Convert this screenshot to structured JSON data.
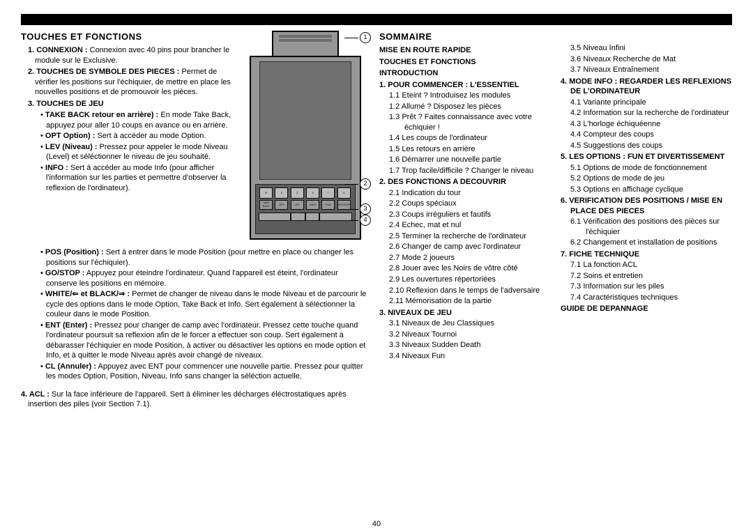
{
  "page_number": "40",
  "left": {
    "heading": "TOUCHES ET FONCTIONS",
    "items": [
      {
        "num": "1.",
        "label": "CONNEXION :",
        "text": " Connexion avec 40 pins pour brancher le module sur le Exclusive."
      },
      {
        "num": "2.",
        "label": "TOUCHES DE SYMBOLE DES PIECES :",
        "text": " Permet de vérifier les positions sur l'échiquier, de mettre en place les nouvelles positions et de promouvoir les pièces."
      },
      {
        "num": "3.",
        "label": "TOUCHES DE JEU",
        "sub": [
          {
            "label": "TAKE BACK retour en arrière) :",
            "text": " En mode Take Back, appuyez pour aller 10 coups en avance ou en arrière."
          },
          {
            "label": "OPT Option) :",
            "text": " Sert à accéder au mode Option."
          },
          {
            "label": "LEV (Niveau) :",
            "text": " Pressez pour appeler le mode Niveau (Level) et séléctionner le niveau de jeu souhaité."
          },
          {
            "label": "INFO :",
            "text": " Sert à accéder au mode Info (pour afficher l'information sur les parties et permettre d'observer la reflexion de l'ordinateur)."
          },
          {
            "label": "POS (Position) :",
            "text": " Sert à entrer dans le mode Position (pour mettre en place ou changer les positions sur l'échiquier)."
          },
          {
            "label": "GO/STOP :",
            "text": " Appuyez pour éteindre l'ordinateur. Quand l'appareil est éteint, l'ordinateur conserve les positions en mémoire."
          },
          {
            "label": "WHITE/⇐ et BLACK/⇒ :",
            "text": " Permet de changer de niveau dans le mode Niveau et de parcourir le cycle des options dans le mode Option, Take Back et Info. Sert également à séléctionner la couleur dans le mode Position."
          },
          {
            "label": "ENT (Enter) :",
            "text": " Pressez pour changer de camp avec l'ordinateur. Pressez cette touche quand l'ordinateur poursuit sa reflexion afin de le forcer a effectuer son coup. Sert également à débarasser l'échiquier en mode Position, à activer ou désactiver les options en mode option et Info, et à quitter le mode Niveau après avoir changé de niveaux."
          },
          {
            "label": "CL (Annuler) :",
            "text": " Appuyez avec ENT pour commencer une nouvelle partie. Pressez pour quitter les modes Option, Position, Niveau, Info sans changer la séléction actuelle."
          }
        ]
      },
      {
        "num": "4.",
        "label": "ACL :",
        "text": " Sur la face inférieure de l'appareil. Sert à éliminer les décharges éléctrostatiques après insertion des piles (voir Section 7.1)."
      }
    ]
  },
  "device": {
    "callouts": [
      "1",
      "2",
      "3",
      "4"
    ],
    "row1": [
      "♔",
      "♕",
      "♖",
      "♗",
      "♘",
      "♙"
    ],
    "row2": [
      "TAKE BACK",
      "OPT",
      "LEV",
      "INFO",
      "POS",
      "GO/ STOP"
    ]
  },
  "sommaire": {
    "heading": "SOMMAIRE",
    "col1": [
      {
        "head": "MISE EN ROUTE RAPIDE"
      },
      {
        "head": "TOUCHES ET FONCTIONS"
      },
      {
        "head": "INTRODUCTION"
      },
      {
        "head": "1. POUR COMMENCER : L'ESSENTIEL"
      },
      {
        "n": "1.1",
        "t": "Eteint ? Introduisez les modules"
      },
      {
        "n": "1.2",
        "t": "Allumé ? Disposez les pièces"
      },
      {
        "n": "1.3",
        "t": "Prêt ? Faites connaissance avec votre échiquier !"
      },
      {
        "n": "1.4",
        "t": "Les coups de l'ordinateur"
      },
      {
        "n": "1.5",
        "t": "Les retours en arrière"
      },
      {
        "n": "1.6",
        "t": "Démarrer une nouvelle partie"
      },
      {
        "n": "1.7",
        "t": "Trop facile/difficile ? Changer le niveau"
      },
      {
        "head": "2. DES FONCTIONS A DECOUVRIR"
      },
      {
        "n": "2.1",
        "t": "Indication du tour"
      },
      {
        "n": "2.2",
        "t": "Coups spéciaux"
      },
      {
        "n": "2.3",
        "t": "Coups irréguliers et fautifs"
      },
      {
        "n": "2.4",
        "t": "Echec, mat et nul"
      },
      {
        "n": "2.5",
        "t": "Terminer la recherche de l'ordinateur"
      },
      {
        "n": "2.6",
        "t": "Changer de camp avec l'ordinateur"
      },
      {
        "n": "2.7",
        "t": "Mode 2 joueurs"
      },
      {
        "n": "2.8",
        "t": "Jouer avec les Noirs de vôtre côté"
      },
      {
        "n": "2.9",
        "t": "Les ouvertures répertoriées"
      },
      {
        "n": "2.10",
        "t": "Reflexion dans le temps de l'adversaire"
      },
      {
        "n": "2.11",
        "t": "Mémorisation de la partie"
      },
      {
        "head": "3. NIVEAUX DE JEU"
      },
      {
        "n": "3.1",
        "t": "Niveaux de Jeu Classiques"
      },
      {
        "n": "3.2",
        "t": "Niveaux Tournoi"
      },
      {
        "n": "3.3",
        "t": "Niveaux Sudden Death"
      },
      {
        "n": "3.4",
        "t": "Niveaux Fun"
      }
    ],
    "col2": [
      {
        "n": "3.5",
        "t": "Niveau Infini"
      },
      {
        "n": "3.6",
        "t": "Niveaux Recherche de Mat"
      },
      {
        "n": "3.7",
        "t": "Niveaux Entraînement"
      },
      {
        "head": "4. MODE INFO : REGARDER LES REFLEXIONS DE L'ORDINATEUR"
      },
      {
        "n": "4.1",
        "t": "Variante principale"
      },
      {
        "n": "4.2",
        "t": "Information sur la recherche de l'ordinateur"
      },
      {
        "n": "4.3",
        "t": "L'horloge échiquéenne"
      },
      {
        "n": "4.4",
        "t": "Compteur des coups"
      },
      {
        "n": "4.5",
        "t": "Suggestions des coups"
      },
      {
        "head": "5. LES OPTIONS : FUN ET DIVERTISSEMENT"
      },
      {
        "n": "5.1",
        "t": "Options de mode de fonctionnement"
      },
      {
        "n": "5.2",
        "t": "Options de mode de jeu"
      },
      {
        "n": "5.3",
        "t": "Options en affichage cyclique"
      },
      {
        "head": "6. VERIFICATION DES POSITIONS / MISE EN PLACE DES PIECES"
      },
      {
        "n": "6.1",
        "t": "Vérification des positions des pièces sur l'échiquier"
      },
      {
        "n": "6.2",
        "t": "Changement et installation de positions"
      },
      {
        "head": "7. FICHE TECHNIQUE"
      },
      {
        "n": "7.1",
        "t": "La fonction ACL"
      },
      {
        "n": "7.2",
        "t": "Soins et entretien"
      },
      {
        "n": "7.3",
        "t": "Information sur les piles"
      },
      {
        "n": "7.4",
        "t": "Caractéristiques techniques"
      },
      {
        "head": "GUIDE DE DEPANNAGE"
      }
    ]
  }
}
